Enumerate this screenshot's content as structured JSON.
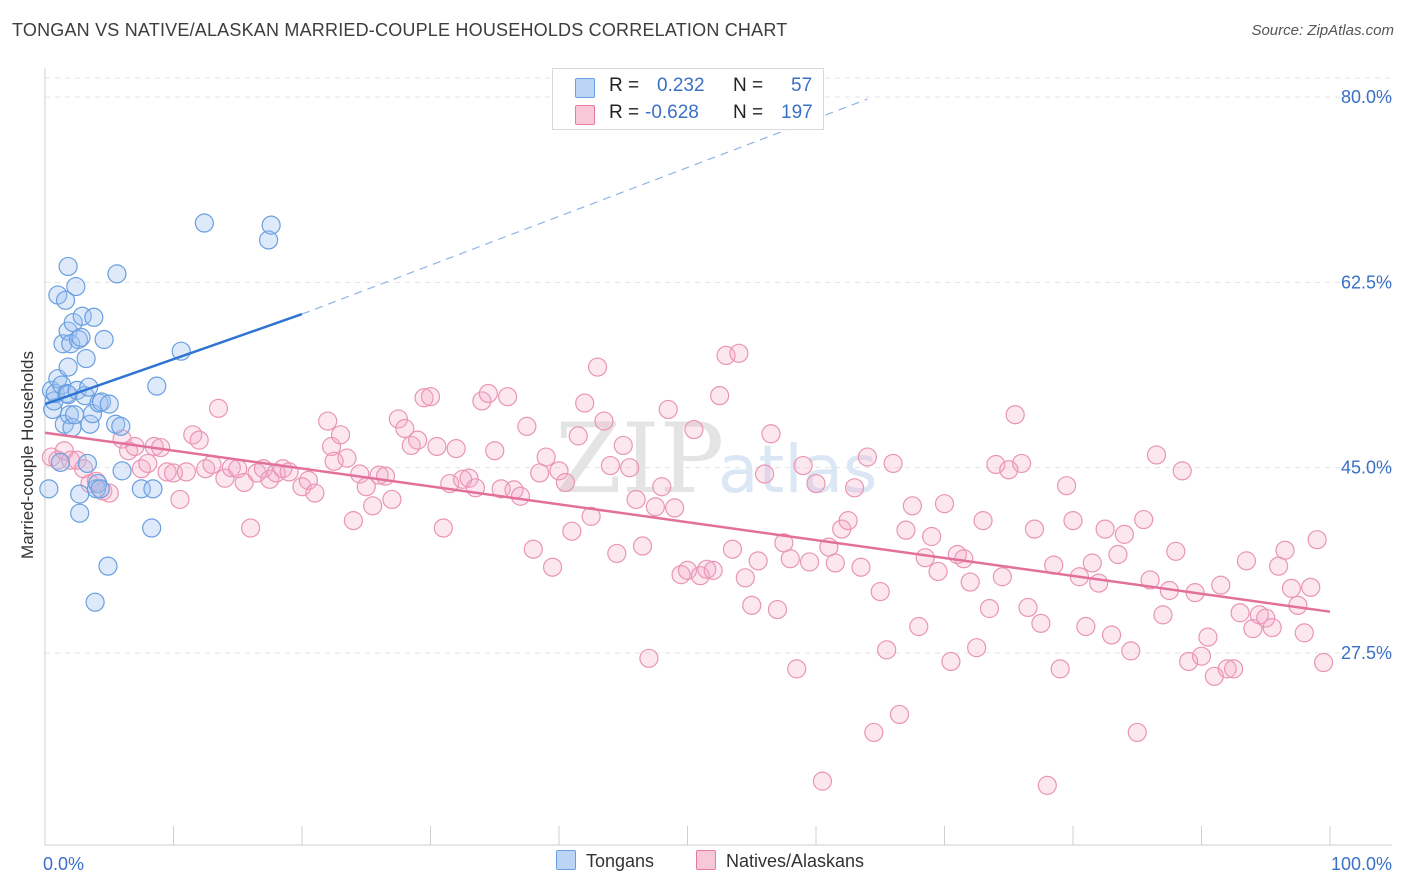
{
  "header": {
    "title": "TONGAN VS NATIVE/ALASKAN MARRIED-COUPLE HOUSEHOLDS CORRELATION CHART",
    "source": "Source: ZipAtlas.com"
  },
  "watermark": {
    "zip": "ZIP",
    "atlas": "atlas"
  },
  "legend": {
    "r_label": "R =",
    "n_label": "N =",
    "series": [
      {
        "name": "Tongans",
        "r": "0.232",
        "n": "57",
        "color": "#6a9fe0",
        "fill": "#bcd4f5"
      },
      {
        "name": "Natives/Alaskans",
        "r": "-0.628",
        "n": "197",
        "color": "#e87aa0",
        "fill": "#f8c8d8"
      }
    ]
  },
  "chart_data": {
    "type": "scatter",
    "title": "TONGAN VS NATIVE/ALASKAN MARRIED-COUPLE HOUSEHOLDS CORRELATION CHART",
    "xlabel": "",
    "ylabel": "Married-couple Households",
    "xlim": [
      0,
      100
    ],
    "ylim": [
      10,
      83
    ],
    "x_tick_labels": [
      "0.0%",
      "100.0%"
    ],
    "y_ticks": [
      27.5,
      45.0,
      62.5,
      80.0
    ],
    "y_tick_labels": [
      "27.5%",
      "45.0%",
      "62.5%",
      "80.0%"
    ],
    "grid": true,
    "legend_position": "top-center",
    "series": [
      {
        "name": "Tongans",
        "color": "#6a9fe0",
        "trend": {
          "x_start": 0,
          "y_start": 51.0,
          "x_solid_end": 20,
          "y_solid_end": 59.5,
          "x_dash_end": 64,
          "y_dash_end": 79.8
        },
        "points": [
          [
            0.3,
            43.0
          ],
          [
            0.5,
            52.3
          ],
          [
            0.6,
            50.5
          ],
          [
            0.7,
            51.3
          ],
          [
            0.8,
            52.0
          ],
          [
            1.0,
            53.4
          ],
          [
            1.0,
            61.3
          ],
          [
            1.2,
            45.5
          ],
          [
            1.3,
            52.8
          ],
          [
            1.4,
            56.7
          ],
          [
            1.5,
            49.1
          ],
          [
            1.6,
            60.8
          ],
          [
            1.7,
            52.0
          ],
          [
            1.8,
            64.0
          ],
          [
            1.8,
            57.9
          ],
          [
            1.8,
            54.5
          ],
          [
            1.8,
            51.9
          ],
          [
            1.9,
            50.0
          ],
          [
            2.0,
            56.7
          ],
          [
            2.1,
            48.8
          ],
          [
            2.2,
            58.7
          ],
          [
            2.3,
            50.0
          ],
          [
            2.4,
            62.1
          ],
          [
            2.5,
            52.3
          ],
          [
            2.6,
            57.1
          ],
          [
            2.7,
            42.5
          ],
          [
            2.7,
            40.7
          ],
          [
            2.8,
            57.3
          ],
          [
            2.9,
            59.3
          ],
          [
            3.1,
            51.8
          ],
          [
            3.2,
            55.3
          ],
          [
            3.3,
            45.4
          ],
          [
            3.4,
            52.6
          ],
          [
            3.5,
            49.1
          ],
          [
            3.7,
            50.1
          ],
          [
            3.8,
            59.2
          ],
          [
            3.9,
            32.3
          ],
          [
            4.0,
            43.0
          ],
          [
            4.1,
            43.5
          ],
          [
            4.2,
            51.1
          ],
          [
            4.3,
            43.0
          ],
          [
            4.4,
            51.2
          ],
          [
            4.6,
            57.1
          ],
          [
            4.9,
            35.7
          ],
          [
            5.0,
            51.0
          ],
          [
            5.5,
            49.1
          ],
          [
            5.6,
            63.3
          ],
          [
            5.9,
            48.9
          ],
          [
            6.0,
            44.7
          ],
          [
            7.5,
            43.0
          ],
          [
            8.3,
            39.3
          ],
          [
            8.4,
            43.0
          ],
          [
            8.7,
            52.7
          ],
          [
            10.6,
            56.0
          ],
          [
            12.4,
            68.1
          ],
          [
            17.4,
            66.5
          ],
          [
            17.6,
            67.9
          ]
        ]
      },
      {
        "name": "Natives/Alaskans",
        "color": "#e87aa0",
        "trend": {
          "x_start": 0,
          "y_start": 48.3,
          "x_end": 100,
          "y_end": 31.4
        },
        "points": [
          [
            0.5,
            46.0
          ],
          [
            1.0,
            45.7
          ],
          [
            1.5,
            46.6
          ],
          [
            2.0,
            45.7
          ],
          [
            2.5,
            45.7
          ],
          [
            3.0,
            44.9
          ],
          [
            3.5,
            43.5
          ],
          [
            4.0,
            43.7
          ],
          [
            4.5,
            42.8
          ],
          [
            5.0,
            42.6
          ],
          [
            6.0,
            47.7
          ],
          [
            6.5,
            46.6
          ],
          [
            7.0,
            47.0
          ],
          [
            7.5,
            44.9
          ],
          [
            8.0,
            45.4
          ],
          [
            8.5,
            47.0
          ],
          [
            9.0,
            46.9
          ],
          [
            9.5,
            44.6
          ],
          [
            10.0,
            44.5
          ],
          [
            10.5,
            42.0
          ],
          [
            11.0,
            44.6
          ],
          [
            11.5,
            48.1
          ],
          [
            12.0,
            47.6
          ],
          [
            12.5,
            44.9
          ],
          [
            13.0,
            45.3
          ],
          [
            13.5,
            50.6
          ],
          [
            14.0,
            44.0
          ],
          [
            14.5,
            45.0
          ],
          [
            15.0,
            44.9
          ],
          [
            15.5,
            43.6
          ],
          [
            16.0,
            39.3
          ],
          [
            16.5,
            44.5
          ],
          [
            17.0,
            44.9
          ],
          [
            17.5,
            43.9
          ],
          [
            18.0,
            44.5
          ],
          [
            18.5,
            44.9
          ],
          [
            19.0,
            44.6
          ],
          [
            20.0,
            43.2
          ],
          [
            20.5,
            43.8
          ],
          [
            21.0,
            42.6
          ],
          [
            22.0,
            49.4
          ],
          [
            22.3,
            47.0
          ],
          [
            22.5,
            45.6
          ],
          [
            23.0,
            48.1
          ],
          [
            23.5,
            45.9
          ],
          [
            24.0,
            40.0
          ],
          [
            24.5,
            44.4
          ],
          [
            25.0,
            43.2
          ],
          [
            25.5,
            41.4
          ],
          [
            26.0,
            44.3
          ],
          [
            26.5,
            44.2
          ],
          [
            27.0,
            42.0
          ],
          [
            27.5,
            49.6
          ],
          [
            28.0,
            48.7
          ],
          [
            28.5,
            47.1
          ],
          [
            29.0,
            47.6
          ],
          [
            29.5,
            51.6
          ],
          [
            30.0,
            51.7
          ],
          [
            30.5,
            47.0
          ],
          [
            31.0,
            39.3
          ],
          [
            31.5,
            43.5
          ],
          [
            32.0,
            46.8
          ],
          [
            32.5,
            43.9
          ],
          [
            33.0,
            44.0
          ],
          [
            33.5,
            43.1
          ],
          [
            34.0,
            51.3
          ],
          [
            34.5,
            52.0
          ],
          [
            35.0,
            46.6
          ],
          [
            35.5,
            43.0
          ],
          [
            36.0,
            51.7
          ],
          [
            36.5,
            42.9
          ],
          [
            37.0,
            42.3
          ],
          [
            37.5,
            48.9
          ],
          [
            38.0,
            37.3
          ],
          [
            38.5,
            44.5
          ],
          [
            39.0,
            46.0
          ],
          [
            39.5,
            35.6
          ],
          [
            40.0,
            44.7
          ],
          [
            40.5,
            43.6
          ],
          [
            41.0,
            39.0
          ],
          [
            41.5,
            48.0
          ],
          [
            42.0,
            51.1
          ],
          [
            42.5,
            40.4
          ],
          [
            43.0,
            54.5
          ],
          [
            43.5,
            49.4
          ],
          [
            44.0,
            45.2
          ],
          [
            44.5,
            36.9
          ],
          [
            45.0,
            47.1
          ],
          [
            45.5,
            45.0
          ],
          [
            46.0,
            42.0
          ],
          [
            46.5,
            37.6
          ],
          [
            47.0,
            27.0
          ],
          [
            47.5,
            41.3
          ],
          [
            48.0,
            43.2
          ],
          [
            48.5,
            50.5
          ],
          [
            49.0,
            41.2
          ],
          [
            49.5,
            34.9
          ],
          [
            50.0,
            35.3
          ],
          [
            50.5,
            48.6
          ],
          [
            51.0,
            34.8
          ],
          [
            51.5,
            35.4
          ],
          [
            52.0,
            35.3
          ],
          [
            52.5,
            51.8
          ],
          [
            53.0,
            55.6
          ],
          [
            53.5,
            37.3
          ],
          [
            54.0,
            55.8
          ],
          [
            54.5,
            34.6
          ],
          [
            55.0,
            32.0
          ],
          [
            55.5,
            36.2
          ],
          [
            56.0,
            44.4
          ],
          [
            56.5,
            48.2
          ],
          [
            57.0,
            31.6
          ],
          [
            57.5,
            37.9
          ],
          [
            58.0,
            36.4
          ],
          [
            58.5,
            26.0
          ],
          [
            59.0,
            45.2
          ],
          [
            59.5,
            36.1
          ],
          [
            60.0,
            43.5
          ],
          [
            60.5,
            15.4
          ],
          [
            61.0,
            37.5
          ],
          [
            61.5,
            36.0
          ],
          [
            62.0,
            39.2
          ],
          [
            62.5,
            40.0
          ],
          [
            63.0,
            43.1
          ],
          [
            63.5,
            35.6
          ],
          [
            64.0,
            46.0
          ],
          [
            64.5,
            20.0
          ],
          [
            65.0,
            33.3
          ],
          [
            65.5,
            27.8
          ],
          [
            66.0,
            45.4
          ],
          [
            66.5,
            21.7
          ],
          [
            67.0,
            39.1
          ],
          [
            67.5,
            41.4
          ],
          [
            68.0,
            30.0
          ],
          [
            68.5,
            36.5
          ],
          [
            69.0,
            38.5
          ],
          [
            69.5,
            35.2
          ],
          [
            70.0,
            41.6
          ],
          [
            70.5,
            26.7
          ],
          [
            71.0,
            36.8
          ],
          [
            71.5,
            36.4
          ],
          [
            72.0,
            34.2
          ],
          [
            72.5,
            28.0
          ],
          [
            73.0,
            40.0
          ],
          [
            73.5,
            31.7
          ],
          [
            74.0,
            45.3
          ],
          [
            74.5,
            34.7
          ],
          [
            75.0,
            44.8
          ],
          [
            75.5,
            50.0
          ],
          [
            76.0,
            45.4
          ],
          [
            76.5,
            31.8
          ],
          [
            77.0,
            39.2
          ],
          [
            77.5,
            30.3
          ],
          [
            78.0,
            15.0
          ],
          [
            78.5,
            35.8
          ],
          [
            79.0,
            26.0
          ],
          [
            79.5,
            43.3
          ],
          [
            80.0,
            40.0
          ],
          [
            80.5,
            34.7
          ],
          [
            81.0,
            30.0
          ],
          [
            81.5,
            36.0
          ],
          [
            82.0,
            34.1
          ],
          [
            82.5,
            39.2
          ],
          [
            83.0,
            29.2
          ],
          [
            83.5,
            36.8
          ],
          [
            84.0,
            38.7
          ],
          [
            84.5,
            27.7
          ],
          [
            85.0,
            20.0
          ],
          [
            85.5,
            40.1
          ],
          [
            86.0,
            34.4
          ],
          [
            86.5,
            46.2
          ],
          [
            87.0,
            31.1
          ],
          [
            87.5,
            33.4
          ],
          [
            88.0,
            37.1
          ],
          [
            88.5,
            44.7
          ],
          [
            89.0,
            26.7
          ],
          [
            89.5,
            33.2
          ],
          [
            90.0,
            27.2
          ],
          [
            90.5,
            29.0
          ],
          [
            91.0,
            25.3
          ],
          [
            91.5,
            33.9
          ],
          [
            92.0,
            26.0
          ],
          [
            92.5,
            26.0
          ],
          [
            93.0,
            31.3
          ],
          [
            93.5,
            36.2
          ],
          [
            94.0,
            29.8
          ],
          [
            94.5,
            31.1
          ],
          [
            95.0,
            30.8
          ],
          [
            95.5,
            29.9
          ],
          [
            96.0,
            35.7
          ],
          [
            96.5,
            37.2
          ],
          [
            97.0,
            33.6
          ],
          [
            97.5,
            32.0
          ],
          [
            98.0,
            29.4
          ],
          [
            98.5,
            33.7
          ],
          [
            99.0,
            38.2
          ],
          [
            99.5,
            26.6
          ]
        ]
      }
    ]
  }
}
